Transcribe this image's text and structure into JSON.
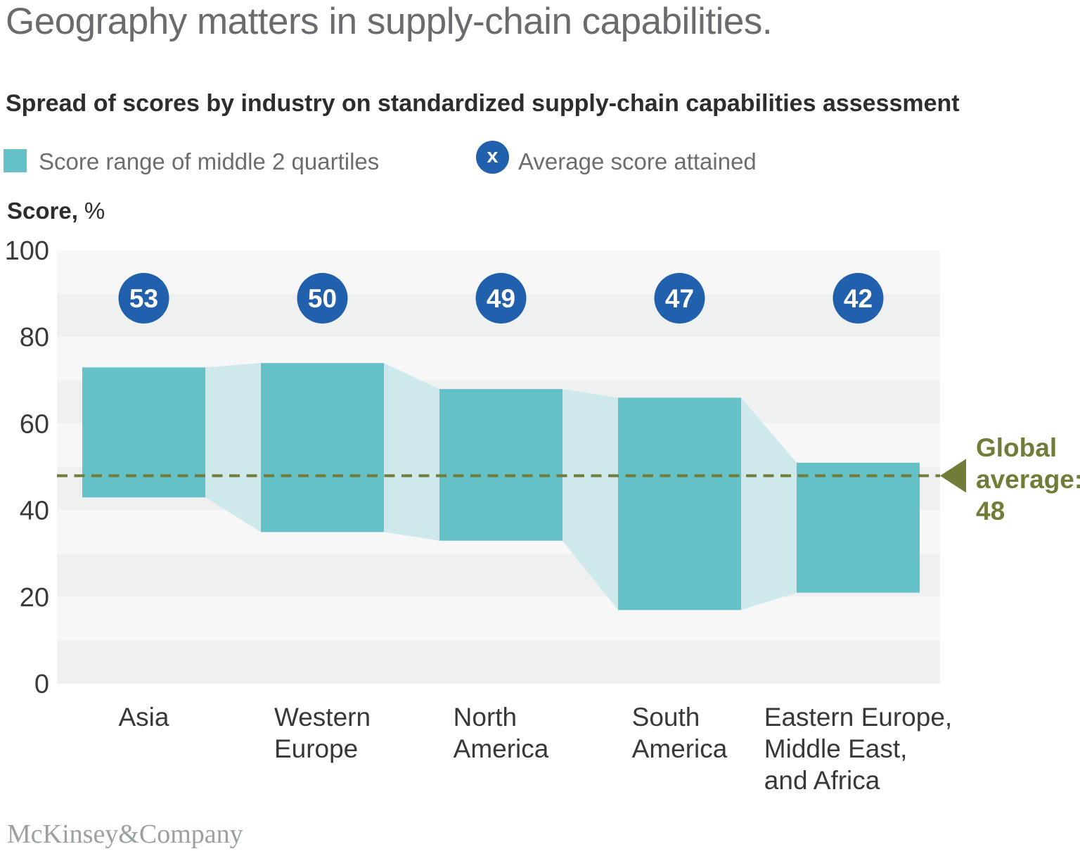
{
  "header": {
    "title": "Geography matters in supply-chain capabilities.",
    "subtitle": "Spread of scores by industry on standardized supply-chain capabilities assessment"
  },
  "legend": {
    "items": [
      {
        "label": "Score range of middle 2 quartiles",
        "swatch": "square",
        "color": "#65c1c8"
      },
      {
        "label": "Average score attained",
        "swatch": "circle",
        "symbol": "x",
        "color": "#2060ad"
      }
    ]
  },
  "axis": {
    "ylabel_bold": "Score,",
    "ylabel_unit": "%"
  },
  "chart_data": {
    "type": "range-bar",
    "title": "Spread of scores by industry on standardized supply-chain capabilities assessment",
    "ylabel": "Score, %",
    "ylim": [
      0,
      100
    ],
    "yticks": [
      0,
      20,
      40,
      60,
      80,
      100
    ],
    "grid": "horizontal-alternating-bands",
    "legend_position": "top-left",
    "categories": [
      "Asia",
      "Western Europe",
      "North America",
      "South America",
      "Eastern Europe, Middle East, and Africa"
    ],
    "category_label_lines": [
      [
        "Asia"
      ],
      [
        "Western",
        "Europe"
      ],
      [
        "North",
        "America"
      ],
      [
        "South",
        "America"
      ],
      [
        "Eastern Europe,",
        "Middle East,",
        "and Africa"
      ]
    ],
    "series": [
      {
        "name": "Score range of middle 2 quartiles",
        "type": "range",
        "low": [
          43,
          35,
          33,
          17,
          21
        ],
        "high": [
          73,
          74,
          68,
          66,
          51
        ]
      },
      {
        "name": "Average score attained",
        "type": "point",
        "values": [
          53,
          50,
          49,
          47,
          42
        ]
      }
    ],
    "global_average": 48,
    "annotation": {
      "text": "Global average: 48",
      "lines": [
        "Global",
        "average:",
        "48"
      ]
    }
  },
  "colors": {
    "bar": "#65c1c8",
    "connector": "#cde9ec",
    "average_circle": "#2060ad",
    "average_text": "#ffffff",
    "global_average": "#727c38",
    "band_light": "#f7f7f8",
    "band_dark": "#eff0f0",
    "tick_text": "#3a3a3a",
    "category_text": "#383838"
  },
  "footer": {
    "logo": "McKinsey&Company"
  }
}
